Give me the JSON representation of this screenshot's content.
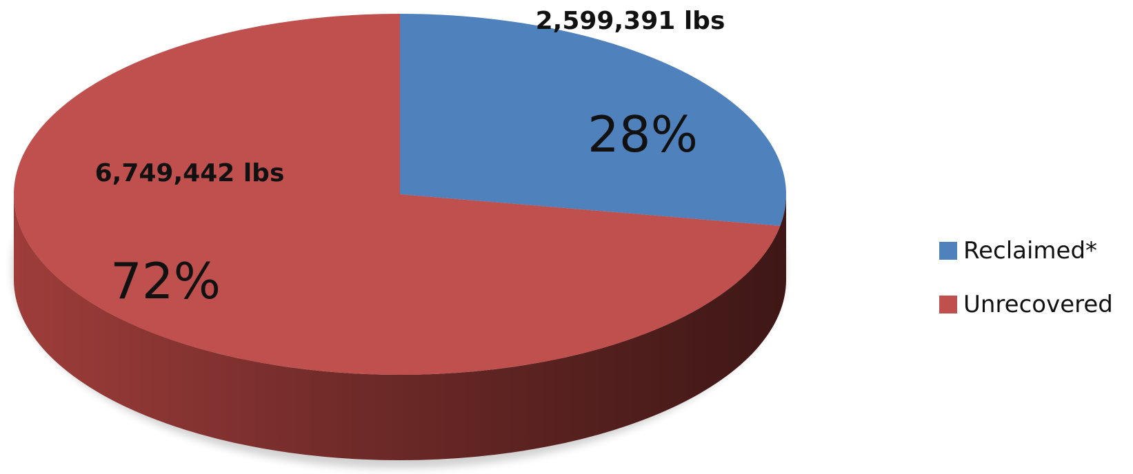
{
  "chart_data": {
    "type": "pie",
    "slices": [
      {
        "name": "Reclaimed*",
        "value_label": "2,599,391 lbs",
        "value": 2599391,
        "percent_label": "28%",
        "percent": 28,
        "color": "#4F81BD",
        "side_color": "#2E4C72"
      },
      {
        "name": "Unrecovered",
        "value_label": "6,749,442 lbs",
        "value": 6749442,
        "percent_label": "72%",
        "percent": 72,
        "color": "#C0504D",
        "side_color": "#7A2E2B"
      }
    ],
    "legend_placement": "right",
    "style": "3d"
  }
}
